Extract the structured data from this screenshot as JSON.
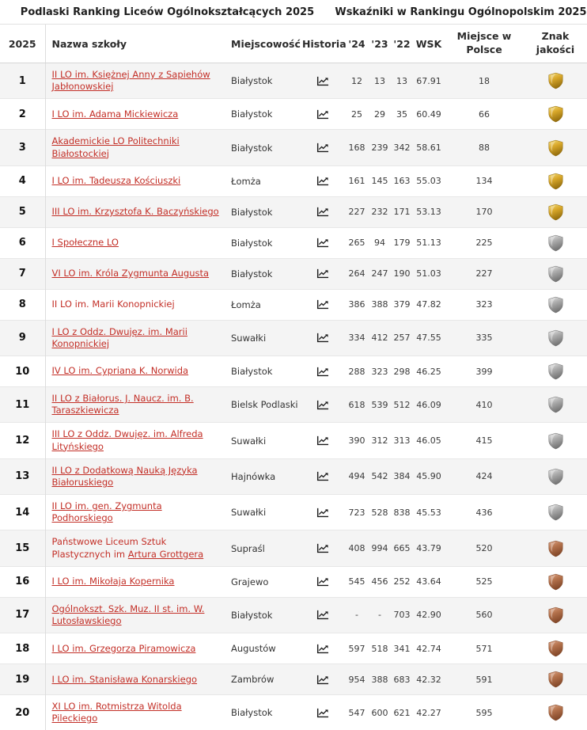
{
  "page": {
    "title_left": "Podlaski Ranking Liceów Ogólnokształcących 2025",
    "title_right": "Wskaźniki w Rankingu Ogólnopolskim 2025"
  },
  "colors": {
    "link": "#c32f27",
    "header_text": "#1f1f1f",
    "row_alt_bg": "#f4f4f4",
    "icon": "#1a1a1a"
  },
  "medals": {
    "gold": {
      "top": "#f3dc7a",
      "mid": "#d9a82a",
      "bottom": "#97700f",
      "stroke": "#8a650e"
    },
    "silver": {
      "top": "#e9e9e9",
      "mid": "#adadad",
      "bottom": "#757575",
      "stroke": "#6b6b6b"
    },
    "bronze": {
      "top": "#dda486",
      "mid": "#b4724c",
      "bottom": "#84492a",
      "stroke": "#7a4326"
    }
  },
  "table": {
    "columns": {
      "rank": "2025",
      "name": "Nazwa szkoły",
      "city": "Miejscowość",
      "history": "Historia",
      "y24": "'24",
      "y23": "'23",
      "y22": "'22",
      "wsk": "WSK",
      "place_line1": "Miejsce w",
      "place_line2": "Polsce",
      "quality_line1": "Znak",
      "quality_line2": "jakości"
    },
    "rows": [
      {
        "rank": "1",
        "name_plain": "",
        "name_link": "II LO im. Księżnej Anny z Sapiehów Jabłonowskiej",
        "city": "Białystok",
        "y24": "12",
        "y23": "13",
        "y22": "13",
        "wsk": "67.91",
        "place": "18",
        "medal": "gold"
      },
      {
        "rank": "2",
        "name_plain": "",
        "name_link": "I LO im. Adama Mickiewicza",
        "city": "Białystok",
        "y24": "25",
        "y23": "29",
        "y22": "35",
        "wsk": "60.49",
        "place": "66",
        "medal": "gold"
      },
      {
        "rank": "3",
        "name_plain": "",
        "name_link": "Akademickie LO Politechniki Białostockiej",
        "city": "Białystok",
        "y24": "168",
        "y23": "239",
        "y22": "342",
        "wsk": "58.61",
        "place": "88",
        "medal": "gold"
      },
      {
        "rank": "4",
        "name_plain": "",
        "name_link": "I LO im. Tadeusza Kościuszki",
        "city": "Łomża",
        "y24": "161",
        "y23": "145",
        "y22": "163",
        "wsk": "55.03",
        "place": "134",
        "medal": "gold"
      },
      {
        "rank": "5",
        "name_plain": "",
        "name_link": "III LO im. Krzysztofa K. Baczyńskiego",
        "city": "Białystok",
        "y24": "227",
        "y23": "232",
        "y22": "171",
        "wsk": "53.13",
        "place": "170",
        "medal": "gold"
      },
      {
        "rank": "6",
        "name_plain": "",
        "name_link": "I Społeczne LO",
        "city": "Białystok",
        "y24": "265",
        "y23": "94",
        "y22": "179",
        "wsk": "51.13",
        "place": "225",
        "medal": "silver"
      },
      {
        "rank": "7",
        "name_plain": "",
        "name_link": "VI LO im. Króla Zygmunta Augusta",
        "city": "Białystok",
        "y24": "264",
        "y23": "247",
        "y22": "190",
        "wsk": "51.03",
        "place": "227",
        "medal": "silver"
      },
      {
        "rank": "8",
        "name_plain": "II LO im. Marii Konopnickiej",
        "name_link": "",
        "city": "Łomża",
        "y24": "386",
        "y23": "388",
        "y22": "379",
        "wsk": "47.82",
        "place": "323",
        "medal": "silver"
      },
      {
        "rank": "9",
        "name_plain": "",
        "name_link": "I LO z Oddz. Dwujęz. im. Marii Konopnickiej",
        "city": "Suwałki",
        "y24": "334",
        "y23": "412",
        "y22": "257",
        "wsk": "47.55",
        "place": "335",
        "medal": "silver"
      },
      {
        "rank": "10",
        "name_plain": "",
        "name_link": "IV LO im. Cypriana K. Norwida",
        "city": "Białystok",
        "y24": "288",
        "y23": "323",
        "y22": "298",
        "wsk": "46.25",
        "place": "399",
        "medal": "silver"
      },
      {
        "rank": "11",
        "name_plain": "",
        "name_link": "II LO z Białorus. J. Naucz. im. B. Taraszkiewicza",
        "city": "Bielsk Podlaski",
        "y24": "618",
        "y23": "539",
        "y22": "512",
        "wsk": "46.09",
        "place": "410",
        "medal": "silver"
      },
      {
        "rank": "12",
        "name_plain": "",
        "name_link": "III LO z Oddz. Dwujęz. im. Alfreda Lityńskiego",
        "city": "Suwałki",
        "y24": "390",
        "y23": "312",
        "y22": "313",
        "wsk": "46.05",
        "place": "415",
        "medal": "silver"
      },
      {
        "rank": "13",
        "name_plain": "",
        "name_link": "II LO z Dodatkową Nauką Języka Białoruskiego",
        "city": "Hajnówka",
        "y24": "494",
        "y23": "542",
        "y22": "384",
        "wsk": "45.90",
        "place": "424",
        "medal": "silver"
      },
      {
        "rank": "14",
        "name_plain": "",
        "name_link": "II LO im. gen. Zygmunta Podhorskiego",
        "city": "Suwałki",
        "y24": "723",
        "y23": "528",
        "y22": "838",
        "wsk": "45.53",
        "place": "436",
        "medal": "silver"
      },
      {
        "rank": "15",
        "name_plain": "Państwowe Liceum Sztuk Plastycznych im ",
        "name_link": "Artura Grottgera",
        "city": "Supraśl",
        "y24": "408",
        "y23": "994",
        "y22": "665",
        "wsk": "43.79",
        "place": "520",
        "medal": "bronze"
      },
      {
        "rank": "16",
        "name_plain": "",
        "name_link": "I LO im. Mikołaja Kopernika",
        "city": "Grajewo",
        "y24": "545",
        "y23": "456",
        "y22": "252",
        "wsk": "43.64",
        "place": "525",
        "medal": "bronze"
      },
      {
        "rank": "17",
        "name_plain": "",
        "name_link": "Ogólnokszt. Szk. Muz. II st. im. W. Lutosławskiego",
        "city": "Białystok",
        "y24": "-",
        "y23": "-",
        "y22": "703",
        "wsk": "42.90",
        "place": "560",
        "medal": "bronze"
      },
      {
        "rank": "18",
        "name_plain": "",
        "name_link": "I LO im. Grzegorza Piramowicza",
        "city": "Augustów",
        "y24": "597",
        "y23": "518",
        "y22": "341",
        "wsk": "42.74",
        "place": "571",
        "medal": "bronze"
      },
      {
        "rank": "19",
        "name_plain": "",
        "name_link": "I LO im. Stanisława Konarskiego",
        "city": "Zambrów",
        "y24": "954",
        "y23": "388",
        "y22": "683",
        "wsk": "42.32",
        "place": "591",
        "medal": "bronze"
      },
      {
        "rank": "20",
        "name_plain": "",
        "name_link": "XI LO im. Rotmistrza Witolda Pileckiego",
        "city": "Białystok",
        "y24": "547",
        "y23": "600",
        "y22": "621",
        "wsk": "42.27",
        "place": "595",
        "medal": "bronze"
      }
    ]
  }
}
